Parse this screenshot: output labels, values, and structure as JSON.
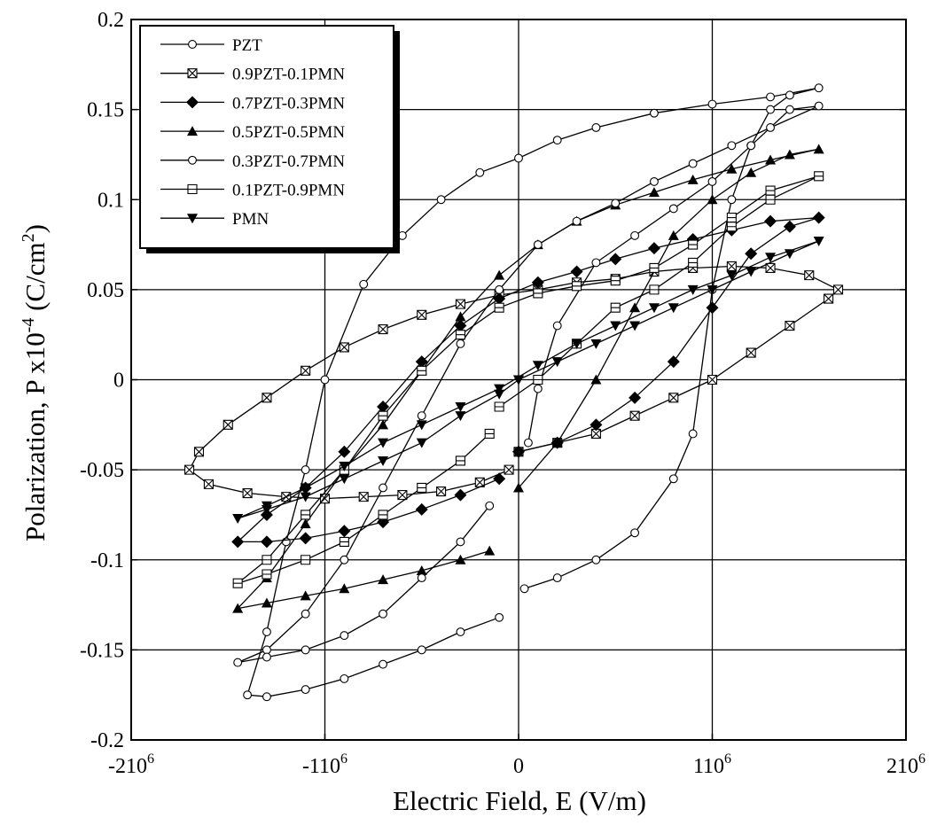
{
  "chart_data": {
    "type": "line",
    "xlabel": "Electric Field, E (V/m)",
    "ylabel": "Polarization, P x10",
    "ylabel_sup1": "-4",
    "ylabel_mid": " (C/cm",
    "ylabel_sup2": "2",
    "ylabel_end": ")",
    "xlim": [
      -2000000,
      2000000
    ],
    "ylim": [
      -0.2,
      0.2
    ],
    "grid": true,
    "x_ticks": [
      {
        "value": -2000000,
        "base": "-210",
        "exp": "6"
      },
      {
        "value": -1000000,
        "base": "-110",
        "exp": "6"
      },
      {
        "value": 0,
        "base": "0",
        "exp": ""
      },
      {
        "value": 1000000,
        "base": "110",
        "exp": "6"
      },
      {
        "value": 2000000,
        "base": "210",
        "exp": "6"
      }
    ],
    "y_ticks": [
      {
        "value": 0.2,
        "label": "0.2"
      },
      {
        "value": 0.15,
        "label": "0.15"
      },
      {
        "value": 0.1,
        "label": "0.1"
      },
      {
        "value": 0.05,
        "label": "0.05"
      },
      {
        "value": 0,
        "label": "0"
      },
      {
        "value": -0.05,
        "label": "-0.05"
      },
      {
        "value": -0.1,
        "label": "-0.1"
      },
      {
        "value": -0.15,
        "label": "-0.15"
      },
      {
        "value": -0.2,
        "label": "-0.2"
      }
    ],
    "legend": {
      "position": "top-left"
    },
    "series": [
      {
        "name": "PZT",
        "marker": "circle-open",
        "points": [
          [
            30000,
            -0.116
          ],
          [
            200000,
            -0.11
          ],
          [
            400000,
            -0.1
          ],
          [
            600000,
            -0.085
          ],
          [
            800000,
            -0.055
          ],
          [
            900000,
            -0.03
          ],
          [
            1000000,
            0.05
          ],
          [
            1100000,
            0.1
          ],
          [
            1200000,
            0.13
          ],
          [
            1300000,
            0.15
          ],
          [
            1400000,
            0.158
          ],
          [
            1550000,
            0.162
          ],
          [
            1300000,
            0.157
          ],
          [
            1000000,
            0.153
          ],
          [
            700000,
            0.148
          ],
          [
            400000,
            0.14
          ],
          [
            200000,
            0.133
          ],
          [
            0,
            0.123
          ],
          [
            -200000,
            0.115
          ],
          [
            -400000,
            0.1
          ],
          [
            -600000,
            0.08
          ],
          [
            -800000,
            0.053
          ],
          [
            -1000000,
            0
          ],
          [
            -1100000,
            -0.05
          ],
          [
            -1200000,
            -0.09
          ],
          [
            -1300000,
            -0.14
          ],
          [
            -1400000,
            -0.175
          ],
          [
            -1300000,
            -0.176
          ],
          [
            -1100000,
            -0.172
          ],
          [
            -900000,
            -0.166
          ],
          [
            -700000,
            -0.158
          ],
          [
            -500000,
            -0.15
          ],
          [
            -300000,
            -0.14
          ],
          [
            -100000,
            -0.132
          ]
        ]
      },
      {
        "name": "0.9PZT-0.1PMN",
        "marker": "square-cross",
        "points": [
          [
            0,
            -0.04
          ],
          [
            200000,
            -0.035
          ],
          [
            400000,
            -0.03
          ],
          [
            600000,
            -0.02
          ],
          [
            800000,
            -0.01
          ],
          [
            1000000,
            0
          ],
          [
            1200000,
            0.015
          ],
          [
            1400000,
            0.03
          ],
          [
            1600000,
            0.045
          ],
          [
            1650000,
            0.05
          ],
          [
            1500000,
            0.058
          ],
          [
            1300000,
            0.062
          ],
          [
            1100000,
            0.063
          ],
          [
            900000,
            0.062
          ],
          [
            700000,
            0.06
          ],
          [
            500000,
            0.056
          ],
          [
            300000,
            0.054
          ],
          [
            100000,
            0.05
          ],
          [
            -100000,
            0.047
          ],
          [
            -300000,
            0.042
          ],
          [
            -500000,
            0.036
          ],
          [
            -700000,
            0.028
          ],
          [
            -900000,
            0.018
          ],
          [
            -1100000,
            0.005
          ],
          [
            -1300000,
            -0.01
          ],
          [
            -1500000,
            -0.025
          ],
          [
            -1650000,
            -0.04
          ],
          [
            -1700000,
            -0.05
          ],
          [
            -1600000,
            -0.058
          ],
          [
            -1400000,
            -0.063
          ],
          [
            -1200000,
            -0.065
          ],
          [
            -1000000,
            -0.066
          ],
          [
            -800000,
            -0.065
          ],
          [
            -600000,
            -0.064
          ],
          [
            -400000,
            -0.062
          ],
          [
            -200000,
            -0.057
          ],
          [
            -50000,
            -0.05
          ]
        ]
      },
      {
        "name": "0.7PZT-0.3PMN",
        "marker": "diamond-filled",
        "points": [
          [
            0,
            -0.04
          ],
          [
            200000,
            -0.035
          ],
          [
            400000,
            -0.025
          ],
          [
            600000,
            -0.01
          ],
          [
            800000,
            0.01
          ],
          [
            1000000,
            0.04
          ],
          [
            1200000,
            0.07
          ],
          [
            1400000,
            0.085
          ],
          [
            1550000,
            0.09
          ],
          [
            1300000,
            0.088
          ],
          [
            1100000,
            0.083
          ],
          [
            900000,
            0.078
          ],
          [
            700000,
            0.073
          ],
          [
            500000,
            0.067
          ],
          [
            300000,
            0.06
          ],
          [
            100000,
            0.054
          ],
          [
            -100000,
            0.045
          ],
          [
            -300000,
            0.03
          ],
          [
            -500000,
            0.01
          ],
          [
            -700000,
            -0.015
          ],
          [
            -900000,
            -0.04
          ],
          [
            -1100000,
            -0.06
          ],
          [
            -1300000,
            -0.075
          ],
          [
            -1450000,
            -0.09
          ],
          [
            -1300000,
            -0.09
          ],
          [
            -1100000,
            -0.088
          ],
          [
            -900000,
            -0.084
          ],
          [
            -700000,
            -0.079
          ],
          [
            -500000,
            -0.072
          ],
          [
            -300000,
            -0.064
          ],
          [
            -100000,
            -0.055
          ]
        ]
      },
      {
        "name": "0.5PZT-0.5PMN",
        "marker": "triangle-up-filled",
        "points": [
          [
            0,
            -0.06
          ],
          [
            200000,
            -0.035
          ],
          [
            400000,
            0
          ],
          [
            600000,
            0.04
          ],
          [
            800000,
            0.08
          ],
          [
            1000000,
            0.1
          ],
          [
            1200000,
            0.115
          ],
          [
            1400000,
            0.125
          ],
          [
            1550000,
            0.128
          ],
          [
            1300000,
            0.122
          ],
          [
            1100000,
            0.117
          ],
          [
            900000,
            0.111
          ],
          [
            700000,
            0.104
          ],
          [
            500000,
            0.097
          ],
          [
            300000,
            0.088
          ],
          [
            100000,
            0.075
          ],
          [
            -100000,
            0.058
          ],
          [
            -300000,
            0.035
          ],
          [
            -500000,
            0.005
          ],
          [
            -700000,
            -0.025
          ],
          [
            -900000,
            -0.05
          ],
          [
            -1100000,
            -0.08
          ],
          [
            -1300000,
            -0.11
          ],
          [
            -1450000,
            -0.127
          ],
          [
            -1300000,
            -0.124
          ],
          [
            -1100000,
            -0.12
          ],
          [
            -900000,
            -0.116
          ],
          [
            -700000,
            -0.111
          ],
          [
            -500000,
            -0.106
          ],
          [
            -300000,
            -0.1
          ],
          [
            -150000,
            -0.095
          ]
        ]
      },
      {
        "name": "0.3PZT-0.7PMN",
        "marker": "circle-open",
        "points": [
          [
            50000,
            -0.035
          ],
          [
            100000,
            -0.005
          ],
          [
            200000,
            0.03
          ],
          [
            400000,
            0.065
          ],
          [
            600000,
            0.08
          ],
          [
            800000,
            0.095
          ],
          [
            1000000,
            0.11
          ],
          [
            1200000,
            0.13
          ],
          [
            1400000,
            0.15
          ],
          [
            1550000,
            0.152
          ],
          [
            1300000,
            0.14
          ],
          [
            1100000,
            0.13
          ],
          [
            900000,
            0.12
          ],
          [
            700000,
            0.11
          ],
          [
            500000,
            0.098
          ],
          [
            300000,
            0.088
          ],
          [
            100000,
            0.075
          ],
          [
            -100000,
            0.05
          ],
          [
            -300000,
            0.02
          ],
          [
            -500000,
            -0.02
          ],
          [
            -700000,
            -0.06
          ],
          [
            -900000,
            -0.1
          ],
          [
            -1100000,
            -0.13
          ],
          [
            -1300000,
            -0.15
          ],
          [
            -1450000,
            -0.157
          ],
          [
            -1300000,
            -0.154
          ],
          [
            -1100000,
            -0.15
          ],
          [
            -900000,
            -0.142
          ],
          [
            -700000,
            -0.13
          ],
          [
            -500000,
            -0.11
          ],
          [
            -300000,
            -0.09
          ],
          [
            -150000,
            -0.07
          ]
        ]
      },
      {
        "name": "0.1PZT-0.9PMN",
        "marker": "square-open",
        "points": [
          [
            -100000,
            -0.015
          ],
          [
            100000,
            0
          ],
          [
            300000,
            0.02
          ],
          [
            500000,
            0.04
          ],
          [
            700000,
            0.05
          ],
          [
            900000,
            0.065
          ],
          [
            1100000,
            0.085
          ],
          [
            1300000,
            0.1
          ],
          [
            1550000,
            0.113
          ],
          [
            1300000,
            0.105
          ],
          [
            1100000,
            0.09
          ],
          [
            900000,
            0.075
          ],
          [
            700000,
            0.062
          ],
          [
            500000,
            0.055
          ],
          [
            300000,
            0.052
          ],
          [
            100000,
            0.048
          ],
          [
            -100000,
            0.04
          ],
          [
            -300000,
            0.025
          ],
          [
            -500000,
            0.005
          ],
          [
            -700000,
            -0.02
          ],
          [
            -900000,
            -0.05
          ],
          [
            -1100000,
            -0.075
          ],
          [
            -1300000,
            -0.1
          ],
          [
            -1450000,
            -0.113
          ],
          [
            -1300000,
            -0.108
          ],
          [
            -1100000,
            -0.1
          ],
          [
            -900000,
            -0.09
          ],
          [
            -700000,
            -0.075
          ],
          [
            -500000,
            -0.06
          ],
          [
            -300000,
            -0.045
          ],
          [
            -150000,
            -0.03
          ]
        ]
      },
      {
        "name": "PMN",
        "marker": "triangle-down-filled",
        "points": [
          [
            0,
            0
          ],
          [
            200000,
            0.01
          ],
          [
            400000,
            0.02
          ],
          [
            600000,
            0.03
          ],
          [
            800000,
            0.04
          ],
          [
            1000000,
            0.05
          ],
          [
            1200000,
            0.06
          ],
          [
            1400000,
            0.07
          ],
          [
            1550000,
            0.077
          ],
          [
            1300000,
            0.068
          ],
          [
            1100000,
            0.058
          ],
          [
            900000,
            0.05
          ],
          [
            700000,
            0.04
          ],
          [
            500000,
            0.03
          ],
          [
            300000,
            0.02
          ],
          [
            100000,
            0.008
          ],
          [
            -100000,
            -0.005
          ],
          [
            -300000,
            -0.015
          ],
          [
            -500000,
            -0.025
          ],
          [
            -700000,
            -0.035
          ],
          [
            -900000,
            -0.048
          ],
          [
            -1100000,
            -0.06
          ],
          [
            -1300000,
            -0.07
          ],
          [
            -1450000,
            -0.077
          ],
          [
            -1300000,
            -0.072
          ],
          [
            -1100000,
            -0.065
          ],
          [
            -900000,
            -0.055
          ],
          [
            -700000,
            -0.045
          ],
          [
            -500000,
            -0.035
          ],
          [
            -300000,
            -0.02
          ],
          [
            -100000,
            -0.008
          ],
          [
            0,
            0
          ]
        ]
      }
    ]
  }
}
